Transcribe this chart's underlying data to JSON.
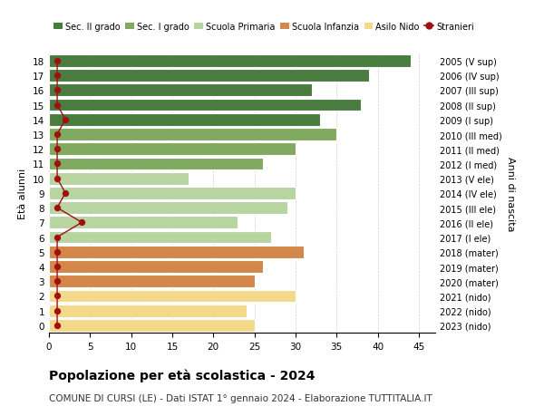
{
  "ages": [
    18,
    17,
    16,
    15,
    14,
    13,
    12,
    11,
    10,
    9,
    8,
    7,
    6,
    5,
    4,
    3,
    2,
    1,
    0
  ],
  "values": [
    44,
    39,
    32,
    38,
    33,
    35,
    30,
    26,
    17,
    30,
    29,
    23,
    27,
    31,
    26,
    25,
    30,
    24,
    25
  ],
  "stranieri": [
    1,
    1,
    1,
    1,
    2,
    1,
    1,
    1,
    1,
    2,
    1,
    4,
    1,
    1,
    1,
    1,
    1,
    1,
    1
  ],
  "right_labels": [
    "2005 (V sup)",
    "2006 (IV sup)",
    "2007 (III sup)",
    "2008 (II sup)",
    "2009 (I sup)",
    "2010 (III med)",
    "2011 (II med)",
    "2012 (I med)",
    "2013 (V ele)",
    "2014 (IV ele)",
    "2015 (III ele)",
    "2016 (II ele)",
    "2017 (I ele)",
    "2018 (mater)",
    "2019 (mater)",
    "2020 (mater)",
    "2021 (nido)",
    "2022 (nido)",
    "2023 (nido)"
  ],
  "bar_colors": [
    "#4a7c3f",
    "#4a7c3f",
    "#4a7c3f",
    "#4a7c3f",
    "#4a7c3f",
    "#7faa5f",
    "#7faa5f",
    "#7faa5f",
    "#b8d4a0",
    "#b8d4a0",
    "#b8d4a0",
    "#b8d4a0",
    "#b8d4a0",
    "#d4874a",
    "#d4874a",
    "#d4874a",
    "#f5d98b",
    "#f5d98b",
    "#f5d98b"
  ],
  "stranieri_color": "#a01010",
  "legend_labels": [
    "Sec. II grado",
    "Sec. I grado",
    "Scuola Primaria",
    "Scuola Infanzia",
    "Asilo Nido",
    "Stranieri"
  ],
  "legend_colors": [
    "#4a7c3f",
    "#7faa5f",
    "#b8d4a0",
    "#d4874a",
    "#f5d98b",
    "#a01010"
  ],
  "title": "Popolazione per età scolastica - 2024",
  "subtitle": "COMUNE DI CURSI (LE) - Dati ISTAT 1° gennaio 2024 - Elaborazione TUTTITALIA.IT",
  "ylabel": "Età alunni",
  "right_ylabel": "Anni di nascita",
  "xlim": [
    0,
    47
  ],
  "xticks": [
    0,
    5,
    10,
    15,
    20,
    25,
    30,
    35,
    40,
    45
  ],
  "ylim": [
    -0.5,
    18.5
  ]
}
